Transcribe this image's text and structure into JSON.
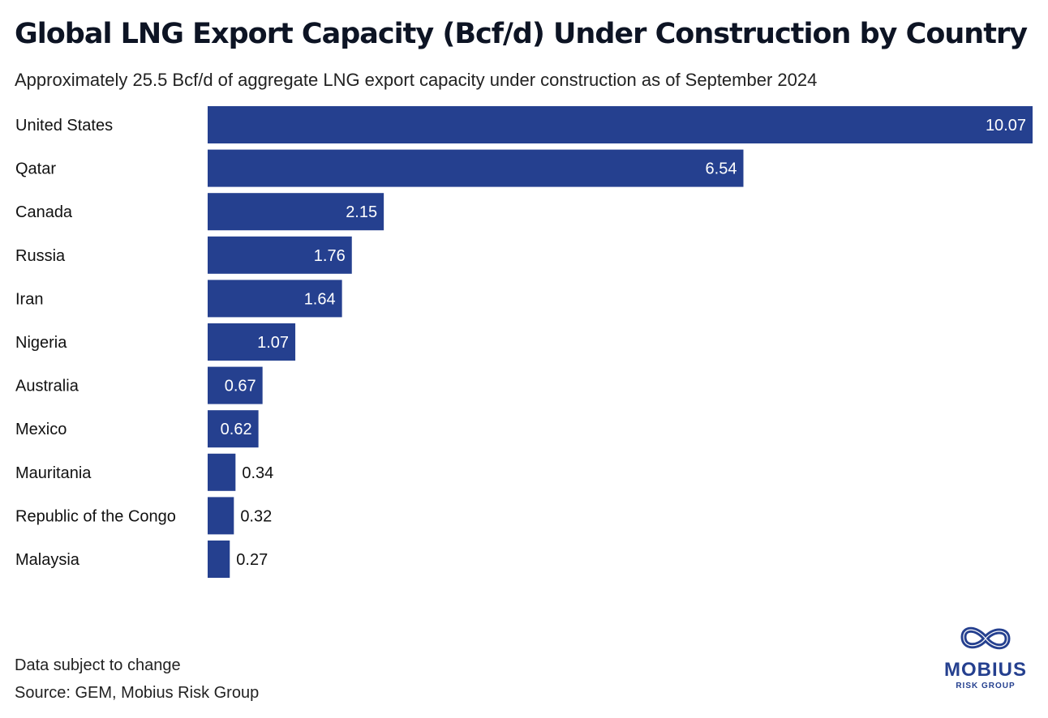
{
  "title": "Global LNG Export Capacity (Bcf/d) Under Construction by Country",
  "subtitle": "Approximately 25.5 Bcf/d of aggregate LNG export capacity under construction as of September 2024",
  "note": "Data subject to change",
  "source": "Source: GEM, Mobius Risk Group",
  "logo": {
    "name": "MOBIUS",
    "tagline": "RISK GROUP"
  },
  "chart_data": {
    "type": "bar",
    "orientation": "horizontal",
    "title": "Global LNG Export Capacity (Bcf/d) Under Construction by Country",
    "subtitle": "Approximately 25.5 Bcf/d of aggregate LNG export capacity under construction as of September 2024",
    "categories": [
      "United States",
      "Qatar",
      "Canada",
      "Russia",
      "Iran",
      "Nigeria",
      "Australia",
      "Mexico",
      "Mauritania",
      "Republic of the Congo",
      "Malaysia"
    ],
    "values": [
      10.07,
      6.54,
      2.15,
      1.76,
      1.64,
      1.07,
      0.67,
      0.62,
      0.34,
      0.32,
      0.27
    ],
    "labels": [
      "10.07",
      "6.54",
      "2.15",
      "1.76",
      "1.64",
      "1.07",
      "0.67",
      "0.62",
      "0.34",
      "0.32",
      "0.27"
    ],
    "xlim": [
      0,
      10.07
    ],
    "grid": false,
    "bar_color": "#25408f"
  }
}
